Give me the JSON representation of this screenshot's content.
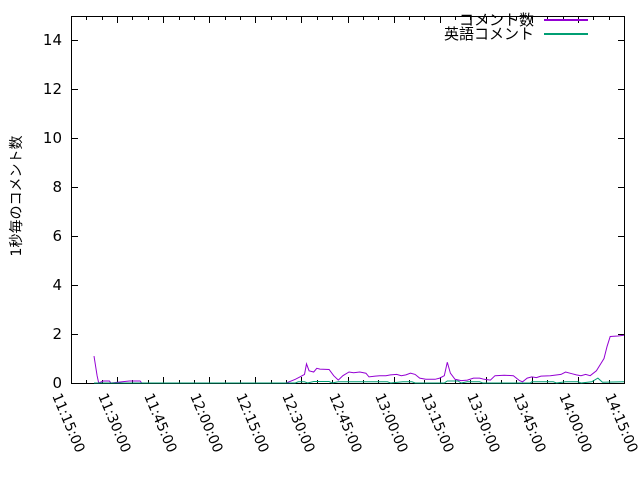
{
  "chart_data": {
    "type": "line",
    "title": "",
    "xlabel": "",
    "ylabel": "1秒毎のコメント数",
    "ylim": [
      0,
      15
    ],
    "y_ticks": [
      "0",
      "2",
      "4",
      "6",
      "8",
      "10",
      "12",
      "14"
    ],
    "x_range": [
      "11:15:00",
      "14:15:00"
    ],
    "x_major_ticks": [
      "11:15:00",
      "11:30:00",
      "11:45:00",
      "12:00:00",
      "12:15:00",
      "12:30:00",
      "12:45:00",
      "13:00:00",
      "13:15:00",
      "13:30:00",
      "13:45:00",
      "14:00:00",
      "14:15:00"
    ],
    "x_major_interval_sec": 900,
    "x_minor_interval_sec": 300,
    "grid": false,
    "legend_position": "inside-top-right",
    "background": "#ffffff",
    "axis_color": "#000000",
    "series": [
      {
        "name": "コメント数",
        "color": "#9400d3",
        "points": [
          [
            "11:22:30",
            1.1
          ],
          [
            "11:23:30",
            0.3
          ],
          [
            "11:24:00",
            0
          ],
          [
            "11:25:30",
            0.08
          ],
          [
            "11:27:30",
            0.08
          ],
          [
            "11:28:00",
            0
          ],
          [
            "11:34:00",
            0.08
          ],
          [
            "11:37:30",
            0.08
          ],
          [
            "11:38:00",
            0
          ],
          [
            "12:25:00",
            0
          ],
          [
            "12:26:00",
            0.05
          ],
          [
            "12:28:00",
            0.15
          ],
          [
            "12:29:30",
            0.25
          ],
          [
            "12:31:00",
            0.35
          ],
          [
            "12:31:40",
            0.78
          ],
          [
            "12:32:30",
            0.5
          ],
          [
            "12:34:00",
            0.45
          ],
          [
            "12:35:00",
            0.6
          ],
          [
            "12:36:00",
            0.57
          ],
          [
            "12:39:00",
            0.55
          ],
          [
            "12:40:30",
            0.3
          ],
          [
            "12:42:00",
            0.12
          ],
          [
            "12:43:30",
            0.3
          ],
          [
            "12:45:30",
            0.45
          ],
          [
            "12:47:00",
            0.42
          ],
          [
            "12:49:00",
            0.45
          ],
          [
            "12:51:00",
            0.4
          ],
          [
            "12:52:00",
            0.25
          ],
          [
            "12:54:00",
            0.28
          ],
          [
            "12:55:30",
            0.3
          ],
          [
            "12:57:30",
            0.3
          ],
          [
            "12:59:00",
            0.33
          ],
          [
            "13:01:00",
            0.35
          ],
          [
            "13:02:30",
            0.3
          ],
          [
            "13:04:00",
            0.33
          ],
          [
            "13:05:30",
            0.4
          ],
          [
            "13:07:00",
            0.35
          ],
          [
            "13:08:30",
            0.2
          ],
          [
            "13:10:30",
            0.15
          ],
          [
            "13:13:30",
            0.15
          ],
          [
            "13:15:00",
            0.2
          ],
          [
            "13:16:30",
            0.3
          ],
          [
            "13:17:30",
            0.85
          ],
          [
            "13:18:30",
            0.4
          ],
          [
            "13:20:00",
            0.15
          ],
          [
            "13:22:00",
            0.1
          ],
          [
            "13:24:00",
            0.12
          ],
          [
            "13:26:00",
            0.2
          ],
          [
            "13:28:00",
            0.2
          ],
          [
            "13:29:30",
            0.15
          ],
          [
            "13:31:30",
            0.12
          ],
          [
            "13:33:00",
            0.3
          ],
          [
            "13:36:00",
            0.32
          ],
          [
            "13:39:00",
            0.3
          ],
          [
            "13:41:00",
            0.1
          ],
          [
            "13:42:00",
            0.05
          ],
          [
            "13:43:30",
            0.2
          ],
          [
            "13:45:00",
            0.25
          ],
          [
            "13:46:30",
            0.22
          ],
          [
            "13:48:00",
            0.28
          ],
          [
            "13:51:00",
            0.3
          ],
          [
            "13:54:30",
            0.35
          ],
          [
            "13:56:00",
            0.45
          ],
          [
            "13:58:00",
            0.38
          ],
          [
            "13:59:30",
            0.33
          ],
          [
            "14:01:00",
            0.3
          ],
          [
            "14:02:30",
            0.35
          ],
          [
            "14:04:00",
            0.3
          ],
          [
            "14:06:00",
            0.5
          ],
          [
            "14:07:30",
            0.8
          ],
          [
            "14:08:30",
            1.0
          ],
          [
            "14:09:30",
            1.5
          ],
          [
            "14:10:30",
            1.9
          ],
          [
            "14:13:00",
            1.92
          ],
          [
            "14:15:00",
            1.95
          ]
        ]
      },
      {
        "name": "英語コメント",
        "color": "#009e73",
        "points": [
          [
            "11:22:30",
            0
          ],
          [
            "12:28:00",
            0
          ],
          [
            "12:29:00",
            0.05
          ],
          [
            "12:31:00",
            0.05
          ],
          [
            "12:32:00",
            0
          ],
          [
            "12:34:00",
            0.06
          ],
          [
            "12:39:00",
            0.06
          ],
          [
            "12:40:00",
            0
          ],
          [
            "12:42:00",
            0.05
          ],
          [
            "12:58:00",
            0.05
          ],
          [
            "12:59:00",
            0
          ],
          [
            "13:03:00",
            0.05
          ],
          [
            "13:06:00",
            0.05
          ],
          [
            "13:07:00",
            0
          ],
          [
            "13:16:30",
            0
          ],
          [
            "13:17:30",
            0.08
          ],
          [
            "13:21:00",
            0.08
          ],
          [
            "13:22:00",
            0
          ],
          [
            "13:24:00",
            0.05
          ],
          [
            "13:28:00",
            0.05
          ],
          [
            "13:29:00",
            0
          ],
          [
            "13:44:30",
            0
          ],
          [
            "13:45:00",
            0.05
          ],
          [
            "13:52:00",
            0.05
          ],
          [
            "13:53:00",
            0
          ],
          [
            "13:56:00",
            0.05
          ],
          [
            "14:00:00",
            0.05
          ],
          [
            "14:01:00",
            0
          ],
          [
            "14:04:30",
            0.05
          ],
          [
            "14:06:30",
            0.2
          ],
          [
            "14:08:00",
            0.03
          ],
          [
            "14:15:00",
            0.05
          ]
        ]
      }
    ]
  }
}
